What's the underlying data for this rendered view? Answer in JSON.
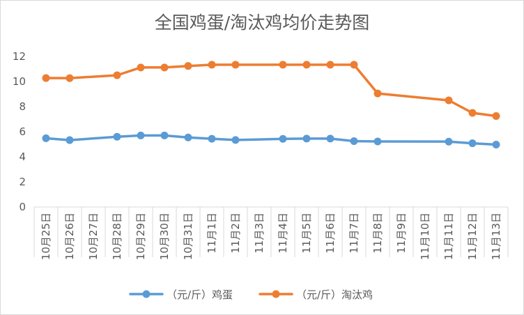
{
  "chart_data": {
    "type": "line",
    "title": "全国鸡蛋/淘汰鸡均价走势图",
    "xlabel": "",
    "ylabel": "",
    "ylim": [
      0,
      12
    ],
    "yticks": [
      0,
      2,
      4,
      6,
      8,
      10,
      12
    ],
    "grid": false,
    "legend_position": "bottom",
    "categories": [
      "10月25日",
      "10月26日",
      "10月27日",
      "10月28日",
      "10月29日",
      "10月30日",
      "10月31日",
      "11月1日",
      "11月2日",
      "11月3日",
      "11月4日",
      "11月5日",
      "11月6日",
      "11月7日",
      "11月8日",
      "11月9日",
      "11月10日",
      "11月11日",
      "11月12日",
      "11月13日"
    ],
    "series": [
      {
        "name": "（元/斤）鸡蛋",
        "color": "#5b9bd5",
        "values": [
          5.48,
          5.33,
          null,
          5.6,
          5.7,
          5.7,
          5.54,
          5.44,
          5.34,
          null,
          5.43,
          5.45,
          5.45,
          5.25,
          5.22,
          null,
          null,
          5.21,
          5.08,
          4.97
        ]
      },
      {
        "name": "（元/斤）淘汰鸡",
        "color": "#ed7d31",
        "values": [
          10.28,
          10.27,
          null,
          10.5,
          11.12,
          11.12,
          11.24,
          11.34,
          11.34,
          null,
          11.34,
          11.34,
          11.34,
          11.34,
          9.05,
          null,
          null,
          8.5,
          7.5,
          7.25
        ]
      }
    ]
  }
}
